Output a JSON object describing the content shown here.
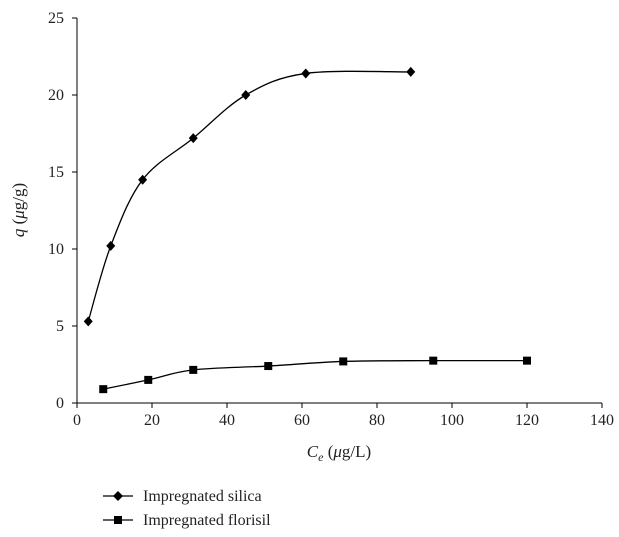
{
  "chart_data": {
    "type": "scatter",
    "xlabel": {
      "main": "C",
      "sub": "e",
      "unit_pre": " (",
      "mu": "μ",
      "unit_post": "g/L)"
    },
    "ylabel": {
      "main": "q",
      "unit_pre": " (",
      "mu": "μ",
      "unit_post": "g/g)"
    },
    "xlim": [
      0,
      140
    ],
    "ylim": [
      0,
      25
    ],
    "xticks": [
      0,
      20,
      40,
      60,
      80,
      100,
      120,
      140
    ],
    "yticks": [
      0,
      5,
      10,
      15,
      20,
      25
    ],
    "grid": false,
    "legend_position": "bottom-left",
    "series": [
      {
        "name": "Impregnated silica",
        "marker": "diamond",
        "color": "#000000",
        "x": [
          3,
          9,
          17.5,
          31,
          45,
          61,
          89
        ],
        "y": [
          5.3,
          10.2,
          14.5,
          17.2,
          20.0,
          21.4,
          21.5
        ]
      },
      {
        "name": "Impregnated florisil",
        "marker": "square",
        "color": "#000000",
        "x": [
          7,
          19,
          31,
          51,
          71,
          95,
          120
        ],
        "y": [
          0.9,
          1.5,
          2.15,
          2.4,
          2.7,
          2.75,
          2.75
        ]
      }
    ]
  }
}
